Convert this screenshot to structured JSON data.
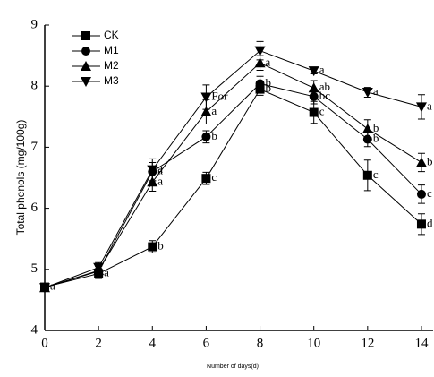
{
  "chart_data": {
    "type": "line",
    "x_label": "Number of days(d)",
    "y_label": "Total phenols (mg/100g)",
    "x": [
      0,
      2,
      4,
      6,
      8,
      10,
      12,
      14
    ],
    "xlim": [
      0,
      14.5
    ],
    "xticks": [
      0,
      2,
      4,
      6,
      8,
      10,
      12,
      14
    ],
    "ylim": [
      4,
      9
    ],
    "yticks": [
      4,
      5,
      6,
      7,
      8,
      9
    ],
    "series": [
      {
        "name": "CK",
        "color": "#000000",
        "marker": "square",
        "values": [
          4.71,
          4.93,
          5.37,
          6.49,
          7.95,
          7.57,
          6.54,
          5.74
        ],
        "errors": [
          0.05,
          0.08,
          0.1,
          0.1,
          0.1,
          0.18,
          0.25,
          0.17
        ],
        "letters": [
          "a",
          "a",
          "b",
          "c",
          "b",
          "c",
          "c",
          "d"
        ]
      },
      {
        "name": "M1",
        "color": "#000000",
        "marker": "circle",
        "values": [
          4.7,
          4.97,
          6.6,
          7.17,
          8.04,
          7.83,
          7.13,
          6.23
        ],
        "errors": [
          0.05,
          0.08,
          0.15,
          0.1,
          0.12,
          0.12,
          0.12,
          0.15
        ],
        "letters": [
          null,
          null,
          "a",
          "b",
          "b",
          "bc",
          "b",
          "c"
        ]
      },
      {
        "name": "M2",
        "color": "#000000",
        "marker": "triangle-up",
        "values": [
          4.7,
          4.98,
          6.43,
          7.58,
          8.38,
          7.97,
          7.3,
          6.75
        ],
        "errors": [
          0.05,
          0.08,
          0.15,
          0.2,
          0.12,
          0.12,
          0.15,
          0.15
        ],
        "letters": [
          null,
          null,
          "a",
          "a",
          "a",
          "ab",
          "b",
          "b"
        ]
      },
      {
        "name": "M3",
        "color": "#000000",
        "marker": "triangle-down",
        "values": [
          4.7,
          5.03,
          6.63,
          7.82,
          8.58,
          8.25,
          7.9,
          7.66
        ],
        "errors": [
          0.05,
          0.08,
          0.18,
          0.2,
          0.15,
          0.05,
          0.08,
          0.2
        ],
        "letters": [
          null,
          null,
          "a",
          "For",
          null,
          "a",
          "a",
          "a"
        ]
      }
    ]
  }
}
